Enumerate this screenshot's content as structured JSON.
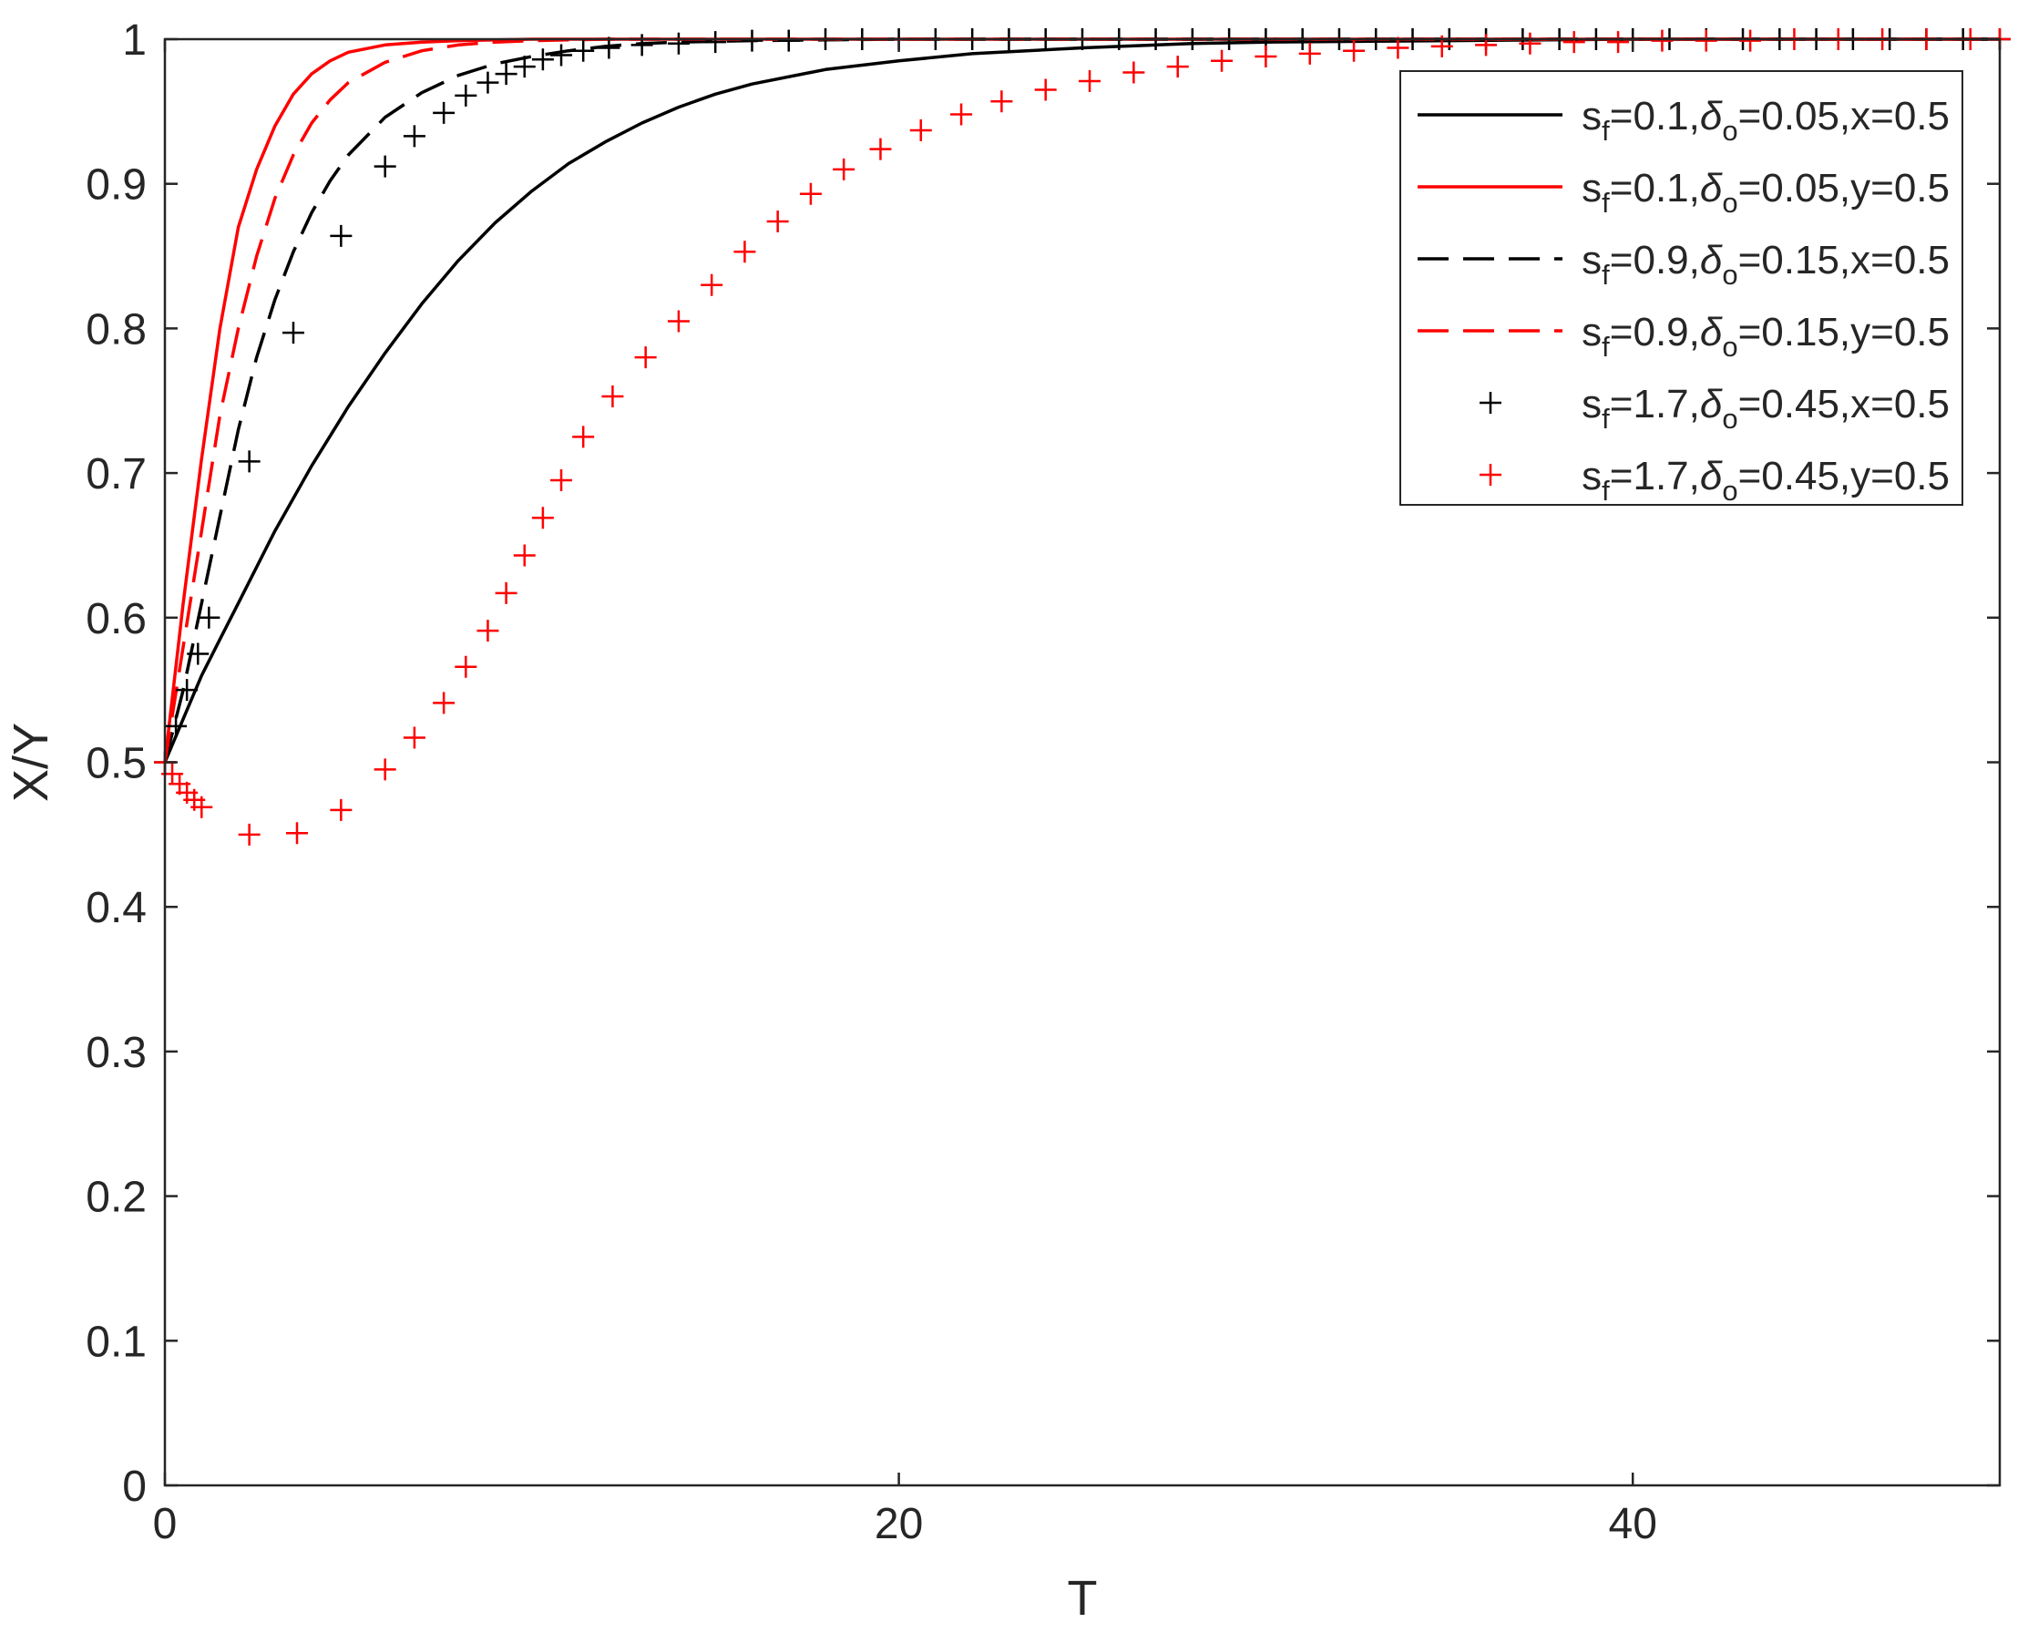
{
  "chart_data": {
    "type": "line",
    "title": "",
    "xlabel": "T",
    "ylabel": "X/Y",
    "xlim": [
      0,
      50
    ],
    "ylim": [
      0,
      1
    ],
    "xticks": [
      0,
      20,
      40
    ],
    "yticks": [
      0,
      0.1,
      0.2,
      0.3,
      0.4,
      0.5,
      0.6,
      0.7,
      0.8,
      0.9,
      1
    ],
    "grid": false,
    "box": true,
    "legend_position": "top-right",
    "series": [
      {
        "label": {
          "s": "s",
          "sub1": "f",
          "mid": "=0.1,",
          "delta": "δ",
          "sub2": "o",
          "tail": "=0.05,x=0.5"
        },
        "color": "#000000",
        "style": "solid",
        "x": [
          0,
          0.5,
          1,
          1.5,
          2,
          3,
          4,
          5,
          6,
          7,
          8,
          9,
          10,
          11,
          12,
          13,
          14,
          15,
          16,
          18,
          20,
          22,
          25,
          28,
          30,
          35,
          40,
          45,
          50
        ],
        "y": [
          0.5,
          0.53,
          0.56,
          0.585,
          0.61,
          0.66,
          0.705,
          0.746,
          0.783,
          0.817,
          0.847,
          0.873,
          0.895,
          0.914,
          0.929,
          0.942,
          0.953,
          0.962,
          0.969,
          0.979,
          0.985,
          0.99,
          0.994,
          0.997,
          0.998,
          0.999,
          1.0,
          1.0,
          1.0
        ]
      },
      {
        "label": {
          "s": "s",
          "sub1": "f",
          "mid": "=0.1,",
          "delta": "δ",
          "sub2": "o",
          "tail": "=0.05,y=0.5"
        },
        "color": "#ff0000",
        "style": "solid",
        "x": [
          0,
          0.5,
          1,
          1.5,
          2,
          2.5,
          3,
          3.5,
          4,
          4.5,
          5,
          6,
          7,
          8,
          10,
          15,
          20,
          30,
          40,
          50
        ],
        "y": [
          0.5,
          0.61,
          0.71,
          0.8,
          0.87,
          0.91,
          0.94,
          0.962,
          0.976,
          0.985,
          0.991,
          0.996,
          0.998,
          0.999,
          1.0,
          1.0,
          1.0,
          1.0,
          1.0,
          1.0
        ]
      },
      {
        "label": {
          "s": "s",
          "sub1": "f",
          "mid": "=0.9,",
          "delta": "δ",
          "sub2": "o",
          "tail": "=0.15,x=0.5"
        },
        "color": "#000000",
        "style": "dashed",
        "x": [
          0,
          0.5,
          1,
          1.5,
          2,
          2.5,
          3,
          3.5,
          4,
          4.5,
          5,
          6,
          7,
          8,
          9,
          10,
          11,
          12,
          13,
          14,
          16,
          20,
          30,
          40,
          50
        ],
        "y": [
          0.5,
          0.55,
          0.61,
          0.67,
          0.73,
          0.78,
          0.82,
          0.853,
          0.88,
          0.902,
          0.92,
          0.946,
          0.963,
          0.975,
          0.983,
          0.988,
          0.992,
          0.995,
          0.997,
          0.998,
          0.999,
          1.0,
          1.0,
          1.0,
          1.0
        ]
      },
      {
        "label": {
          "s": "s",
          "sub1": "f",
          "mid": "=0.9,",
          "delta": "δ",
          "sub2": "o",
          "tail": "=0.15,y=0.5"
        },
        "color": "#ff0000",
        "style": "dashed",
        "x": [
          0,
          0.5,
          1,
          1.5,
          2,
          2.5,
          3,
          3.5,
          4,
          4.5,
          5,
          6,
          7,
          8,
          9,
          10,
          12,
          15,
          20,
          30,
          40,
          50
        ],
        "y": [
          0.5,
          0.58,
          0.66,
          0.74,
          0.8,
          0.85,
          0.89,
          0.92,
          0.942,
          0.958,
          0.97,
          0.984,
          0.992,
          0.996,
          0.998,
          0.999,
          1.0,
          1.0,
          1.0,
          1.0,
          1.0,
          1.0
        ]
      },
      {
        "label": {
          "s": "s",
          "sub1": "f",
          "mid": "=1.7,",
          "delta": "δ",
          "sub2": "o",
          "tail": "=0.45,x=0.5"
        },
        "color": "#000000",
        "style": "plus",
        "x": [
          0,
          0.3,
          0.6,
          0.9,
          1.2,
          2.3,
          3.5,
          4.8,
          6.0,
          6.8,
          7.6,
          8.2,
          8.8,
          9.3,
          9.8,
          10.3,
          10.8,
          11.4,
          12.1,
          13.0,
          14.0,
          15.0,
          16.0,
          17.0,
          18.0,
          19.0,
          20.0,
          21.0,
          22.0,
          23.0,
          24.0,
          25.0,
          26.0,
          27.0,
          28.0,
          29.0,
          30.0,
          31.0,
          32.0,
          33.0,
          34.0,
          35.0,
          36.0,
          37.0,
          38.0,
          39.0,
          40.0,
          41.0,
          42.0,
          43.0,
          44.0,
          45.0,
          46.0,
          47.0,
          48.0,
          49.0,
          50.0
        ],
        "y": [
          0.5,
          0.525,
          0.55,
          0.575,
          0.6,
          0.708,
          0.797,
          0.864,
          0.912,
          0.933,
          0.949,
          0.961,
          0.97,
          0.976,
          0.981,
          0.986,
          0.989,
          0.992,
          0.994,
          0.996,
          0.997,
          0.998,
          0.999,
          0.999,
          1.0,
          1.0,
          1.0,
          1.0,
          1.0,
          1.0,
          1.0,
          1.0,
          1.0,
          1.0,
          1.0,
          1.0,
          1.0,
          1.0,
          1.0,
          1.0,
          1.0,
          1.0,
          1.0,
          1.0,
          1.0,
          1.0,
          1.0,
          1.0,
          1.0,
          1.0,
          1.0,
          1.0,
          1.0,
          1.0,
          1.0,
          1.0,
          1.0
        ]
      },
      {
        "label": {
          "s": "s",
          "sub1": "f",
          "mid": "=1.7,",
          "delta": "δ",
          "sub2": "o",
          "tail": "=0.45,y=0.5"
        },
        "color": "#ff0000",
        "style": "plus",
        "x": [
          0,
          0.2,
          0.4,
          0.6,
          0.8,
          1.0,
          2.3,
          3.6,
          4.8,
          6.0,
          6.8,
          7.6,
          8.2,
          8.8,
          9.3,
          9.8,
          10.3,
          10.8,
          11.4,
          12.2,
          13.1,
          14.0,
          14.9,
          15.8,
          16.7,
          17.6,
          18.5,
          19.5,
          20.6,
          21.7,
          22.8,
          24.0,
          25.2,
          26.4,
          27.6,
          28.8,
          30.0,
          31.2,
          32.4,
          33.6,
          34.8,
          36.0,
          37.2,
          38.4,
          39.6,
          40.8,
          42.0,
          43.2,
          44.4,
          45.6,
          46.8,
          48.0,
          49.2,
          50.0
        ],
        "y": [
          0.5,
          0.492,
          0.485,
          0.479,
          0.474,
          0.469,
          0.45,
          0.451,
          0.467,
          0.495,
          0.517,
          0.541,
          0.566,
          0.591,
          0.617,
          0.643,
          0.669,
          0.695,
          0.725,
          0.753,
          0.78,
          0.805,
          0.83,
          0.853,
          0.874,
          0.893,
          0.91,
          0.924,
          0.937,
          0.948,
          0.957,
          0.965,
          0.971,
          0.977,
          0.981,
          0.985,
          0.988,
          0.99,
          0.992,
          0.994,
          0.995,
          0.996,
          0.997,
          0.998,
          0.998,
          0.999,
          0.999,
          0.999,
          1.0,
          1.0,
          1.0,
          1.0,
          1.0,
          1.0
        ]
      }
    ]
  }
}
